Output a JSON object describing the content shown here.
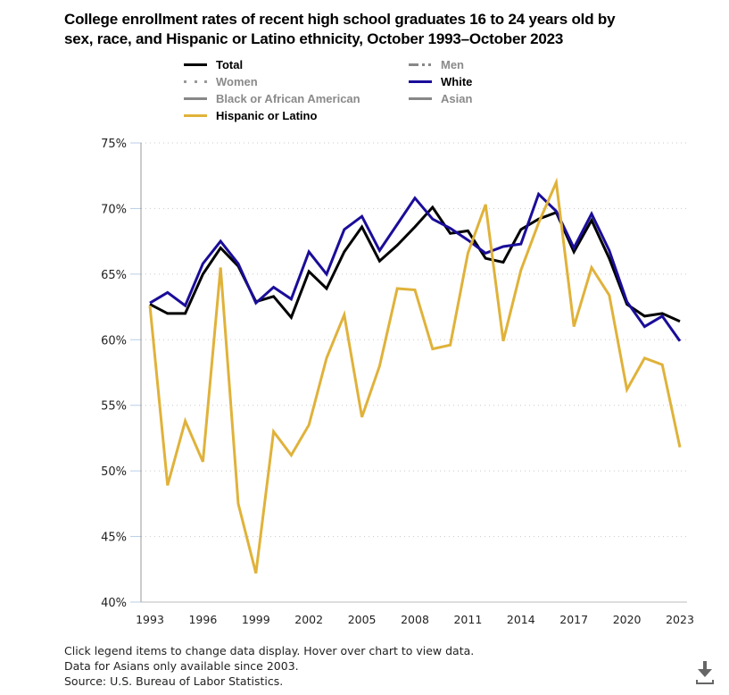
{
  "title_line1": "College enrollment rates of recent high school graduates 16 to 24 years old by",
  "title_line2": "sex, race, and Hispanic or Latino ethnicity, October 1993–October 2023",
  "legend": [
    {
      "label": "Total",
      "color": "#000000",
      "active": true,
      "style": "solid"
    },
    {
      "label": "Men",
      "color": "#888888",
      "active": false,
      "style": "dashdot"
    },
    {
      "label": "Women",
      "color": "#999999",
      "active": false,
      "style": "dotted"
    },
    {
      "label": "White",
      "color": "#1a0d99",
      "active": true,
      "style": "solid"
    },
    {
      "label": "Black or African American",
      "color": "#888888",
      "active": false,
      "style": "solid"
    },
    {
      "label": "Asian",
      "color": "#888888",
      "active": false,
      "style": "solid"
    },
    {
      "label": "Hispanic or Latino",
      "color": "#e0b23a",
      "active": true,
      "style": "solid"
    }
  ],
  "notes": [
    "Click legend items to change data display. Hover over chart to view data.",
    "Data for Asians only available since 2003.",
    "Source: U.S. Bureau of Labor Statistics."
  ],
  "download_icon": "download-icon",
  "chart_data": {
    "type": "line",
    "title": "College enrollment rates of recent high school graduates 16 to 24 years old by sex, race, and Hispanic or Latino ethnicity, October 1993–October 2023",
    "xlabel": "",
    "ylabel": "",
    "x": [
      1993,
      1994,
      1995,
      1996,
      1997,
      1998,
      1999,
      2000,
      2001,
      2002,
      2003,
      2004,
      2005,
      2006,
      2007,
      2008,
      2009,
      2010,
      2011,
      2012,
      2013,
      2014,
      2015,
      2016,
      2017,
      2018,
      2019,
      2020,
      2021,
      2022,
      2023
    ],
    "xticks": [
      "1993",
      "1996",
      "1999",
      "2002",
      "2005",
      "2008",
      "2011",
      "2014",
      "2017",
      "2020",
      "2023"
    ],
    "xlim": [
      1993,
      2023
    ],
    "ylim": [
      40,
      75
    ],
    "yticks": [
      40,
      45,
      50,
      55,
      60,
      65,
      70,
      75
    ],
    "ytick_labels": [
      "40%",
      "45%",
      "50%",
      "55%",
      "60%",
      "65%",
      "70%",
      "75%"
    ],
    "grid": "horizontal-dotted",
    "legend_position": "top",
    "series": [
      {
        "name": "Total",
        "color": "#000000",
        "values": [
          62.7,
          62.0,
          62.0,
          65.0,
          67.0,
          65.6,
          62.9,
          63.3,
          61.7,
          65.2,
          63.9,
          66.7,
          68.6,
          66.0,
          67.2,
          68.6,
          70.1,
          68.1,
          68.3,
          66.2,
          65.9,
          68.4,
          69.2,
          69.7,
          66.7,
          69.1,
          66.2,
          62.7,
          61.8,
          62.0,
          61.4
        ]
      },
      {
        "name": "White",
        "color": "#1a0d99",
        "values": [
          62.8,
          63.6,
          62.6,
          65.8,
          67.5,
          65.8,
          62.8,
          64.0,
          63.1,
          66.7,
          65.0,
          68.4,
          69.4,
          66.8,
          68.8,
          70.8,
          69.2,
          68.5,
          67.6,
          66.6,
          67.1,
          67.3,
          71.1,
          69.8,
          67.0,
          69.6,
          66.8,
          62.9,
          61.0,
          61.8,
          59.9
        ]
      },
      {
        "name": "Hispanic or Latino",
        "color": "#e0b23a",
        "values": [
          62.6,
          48.9,
          53.8,
          50.7,
          65.5,
          47.5,
          42.2,
          53.0,
          51.2,
          53.5,
          58.6,
          61.9,
          54.1,
          58.0,
          63.9,
          63.8,
          59.3,
          59.6,
          66.6,
          70.3,
          59.9,
          65.3,
          68.9,
          72.0,
          61.0,
          65.5,
          63.4,
          56.2,
          58.6,
          58.1,
          51.8
        ]
      }
    ]
  }
}
